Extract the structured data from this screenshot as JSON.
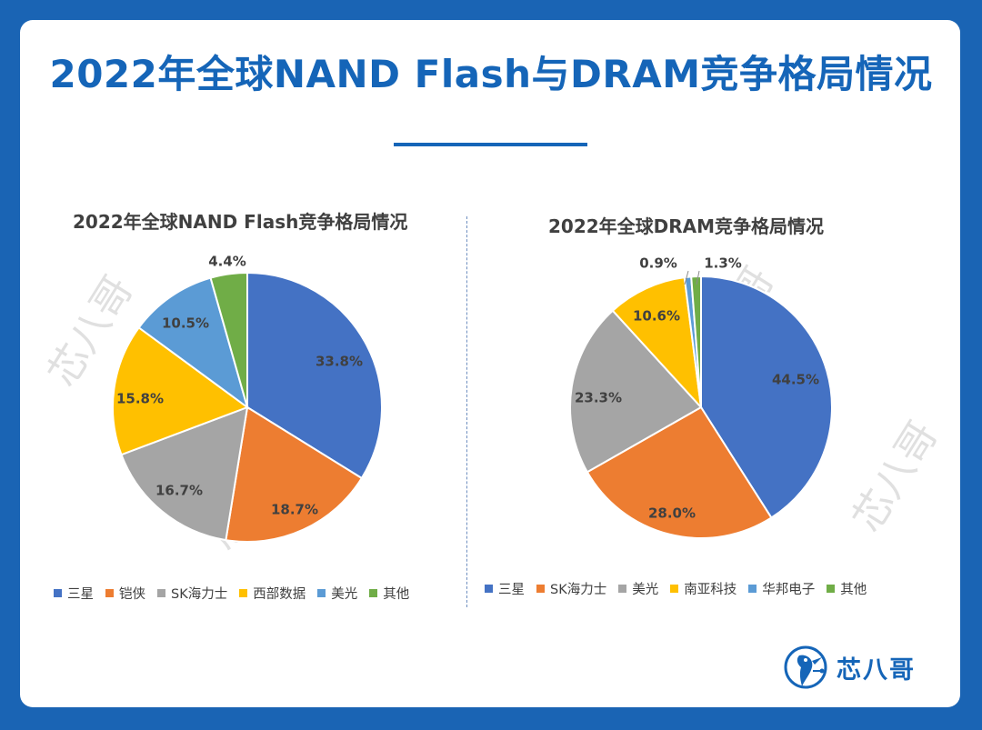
{
  "page": {
    "title": "2022年全球NAND Flash与DRAM竞争格局情况",
    "logo_text": "芯八哥",
    "watermark_text": "芯八哥",
    "accent_color": "#1565b8",
    "background_color": "#1a64b4"
  },
  "chart_data": [
    {
      "type": "pie",
      "title": "2022年全球NAND Flash竞争格局情况",
      "categories": [
        "三星",
        "铠侠",
        "SK海力士",
        "西部数据",
        "美光",
        "其他"
      ],
      "values": [
        33.8,
        18.7,
        16.7,
        15.8,
        10.5,
        4.4
      ],
      "labels": [
        "33.8%",
        "18.7%",
        "16.7%",
        "15.8%",
        "10.5%",
        "4.4%"
      ],
      "colors": [
        "#4472c4",
        "#ed7d31",
        "#a5a5a5",
        "#ffc000",
        "#5b9bd5",
        "#70ad47"
      ],
      "legend_position": "bottom"
    },
    {
      "type": "pie",
      "title": "2022年全球DRAM竞争格局情况",
      "categories": [
        "三星",
        "SK海力士",
        "美光",
        "南亚科技",
        "华邦电子",
        "其他"
      ],
      "values": [
        44.5,
        28.0,
        23.3,
        10.6,
        0.9,
        1.3
      ],
      "labels": [
        "44.5%",
        "28.0%",
        "23.3%",
        "10.6%",
        "0.9%",
        "1.3%"
      ],
      "colors": [
        "#4472c4",
        "#ed7d31",
        "#a5a5a5",
        "#ffc000",
        "#5b9bd5",
        "#70ad47"
      ],
      "legend_position": "bottom"
    }
  ]
}
